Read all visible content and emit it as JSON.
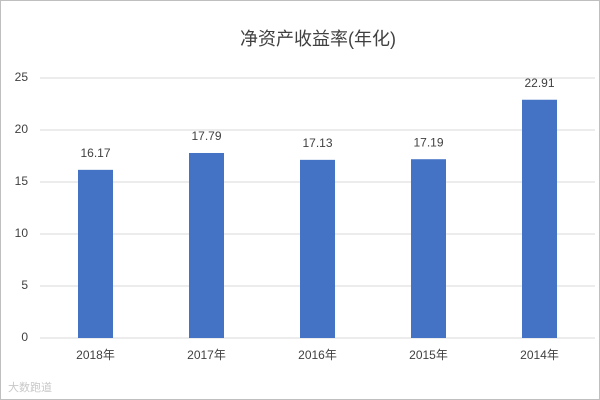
{
  "chart_data": {
    "type": "bar",
    "title": "净资产收益率(年化)",
    "categories": [
      "2018年",
      "2017年",
      "2016年",
      "2015年",
      "2014年"
    ],
    "values": [
      16.17,
      17.79,
      17.13,
      17.19,
      22.91
    ],
    "color": "#4472c4",
    "ylim": [
      0,
      25
    ],
    "yticks": [
      0,
      5,
      10,
      15,
      20,
      25
    ],
    "grid": true,
    "watermark": "大数跑道"
  }
}
